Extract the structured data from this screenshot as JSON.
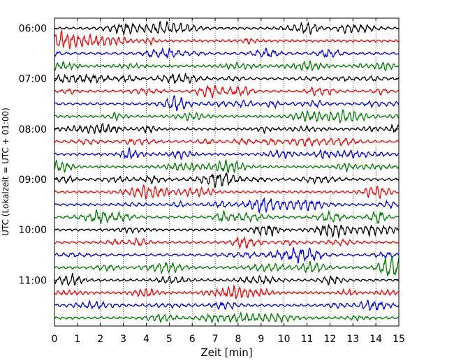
{
  "chart_data": {
    "type": "line",
    "title": "",
    "xlabel": "Zeit  [min]",
    "ylabel": "UTC (Lokalzeit = UTC + 01:00)",
    "xlim": [
      0,
      15
    ],
    "x_ticks": [
      "0",
      "1",
      "2",
      "3",
      "4",
      "5",
      "6",
      "7",
      "8",
      "9",
      "10",
      "11",
      "12",
      "13",
      "14",
      "15"
    ],
    "y_ticks": [
      "06:00",
      "07:00",
      "08:00",
      "09:00",
      "10:00",
      "11:00"
    ],
    "grid": "vertical dotted lines at each minute",
    "trace_minutes": 15,
    "color_cycle": [
      "#000000",
      "#ff0000",
      "#0000ff",
      "#008000"
    ],
    "traces": [
      {
        "start": "06:00",
        "color": "#000000"
      },
      {
        "start": "06:15",
        "color": "#ff0000"
      },
      {
        "start": "06:30",
        "color": "#0000ff"
      },
      {
        "start": "06:45",
        "color": "#008000"
      },
      {
        "start": "07:00",
        "color": "#000000"
      },
      {
        "start": "07:15",
        "color": "#ff0000"
      },
      {
        "start": "07:30",
        "color": "#0000ff"
      },
      {
        "start": "07:45",
        "color": "#008000"
      },
      {
        "start": "08:00",
        "color": "#000000"
      },
      {
        "start": "08:15",
        "color": "#ff0000"
      },
      {
        "start": "08:30",
        "color": "#0000ff"
      },
      {
        "start": "08:45",
        "color": "#008000"
      },
      {
        "start": "09:00",
        "color": "#000000"
      },
      {
        "start": "09:15",
        "color": "#ff0000"
      },
      {
        "start": "09:30",
        "color": "#0000ff"
      },
      {
        "start": "09:45",
        "color": "#008000"
      },
      {
        "start": "10:00",
        "color": "#000000"
      },
      {
        "start": "10:15",
        "color": "#ff0000"
      },
      {
        "start": "10:30",
        "color": "#0000ff"
      },
      {
        "start": "10:45",
        "color": "#008000"
      },
      {
        "start": "11:00",
        "color": "#000000"
      },
      {
        "start": "11:15",
        "color": "#ff0000"
      },
      {
        "start": "11:30",
        "color": "#0000ff"
      },
      {
        "start": "11:45",
        "color": "#008000"
      }
    ]
  }
}
